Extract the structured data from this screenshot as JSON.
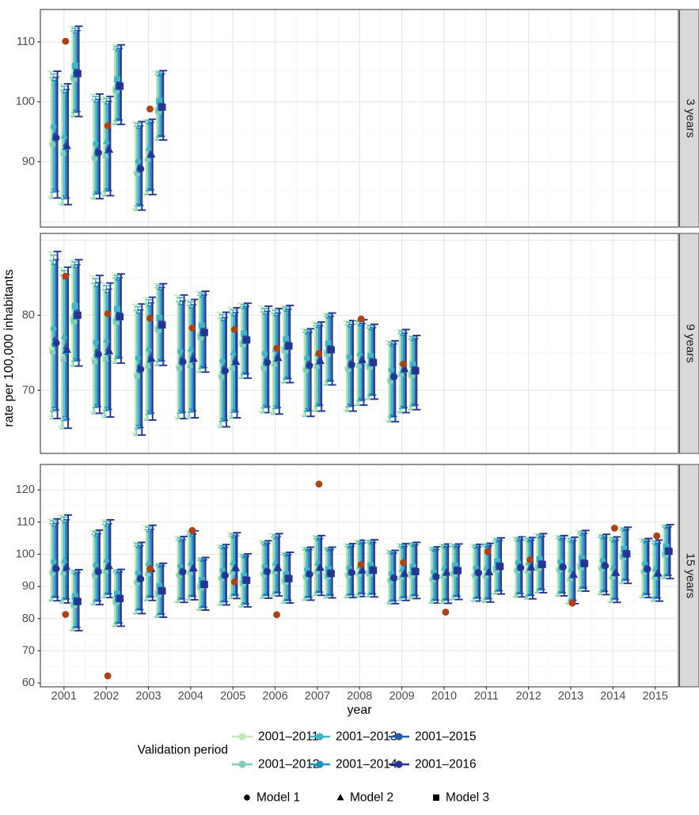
{
  "figure": {
    "xlabel": "year",
    "ylabel": "rate per 100,000 inhabitants"
  },
  "legend": {
    "validation_title": "Validation period",
    "periods": [
      {
        "label": "2001–2011",
        "color": "#c7e9b4"
      },
      {
        "label": "2001–2012",
        "color": "#7fcdbb"
      },
      {
        "label": "2001–2013",
        "color": "#41b6c4"
      },
      {
        "label": "2001–2014",
        "color": "#1d91c0"
      },
      {
        "label": "2001–2015",
        "color": "#225ea8"
      },
      {
        "label": "2001–2016",
        "color": "#253494"
      }
    ],
    "models": [
      {
        "label": "Model 1",
        "shape": "circle"
      },
      {
        "label": "Model 2",
        "shape": "triangle"
      },
      {
        "label": "Model 3",
        "shape": "square"
      }
    ]
  },
  "chart_data": {
    "type": "errorbar",
    "title": "",
    "xlabel": "year",
    "ylabel": "rate per 100,000 inhabitants",
    "x_ticks": [
      2001,
      2002,
      2003,
      2004,
      2005,
      2006,
      2007,
      2008,
      2009,
      2010,
      2011,
      2012,
      2013,
      2014,
      2015
    ],
    "observed_color": "#b04117",
    "interval_format": [
      "mid",
      "lo",
      "hi"
    ],
    "legend_position": "bottom",
    "grid": true,
    "facets": [
      {
        "label": "3 years",
        "ylim": [
          79.1,
          115.4
        ],
        "yticks": [
          90,
          100,
          110
        ],
        "years": [
          2001,
          2002,
          2003
        ],
        "observed": [
          110.1,
          96.0,
          98.8
        ],
        "models": [
          {
            "name": "Model 1",
            "shape": "circle",
            "intervals": [
              [
                94.0,
                83.9,
                105.1
              ],
              [
                91.5,
                83.8,
                101.3
              ],
              [
                88.8,
                81.9,
                96.7
              ]
            ]
          },
          {
            "name": "Model 2",
            "shape": "triangle",
            "intervals": [
              [
                92.6,
                82.8,
                103.0
              ],
              [
                92.0,
                84.3,
                100.9
              ],
              [
                91.2,
                84.5,
                97.1
              ]
            ]
          },
          {
            "name": "Model 3",
            "shape": "square",
            "intervals": [
              [
                104.7,
                97.5,
                112.6
              ],
              [
                102.6,
                96.2,
                109.5
              ],
              [
                99.1,
                93.6,
                105.2
              ]
            ]
          }
        ]
      },
      {
        "label": "9 years",
        "ylim": [
          61.6,
          90.9
        ],
        "yticks": [
          70,
          80
        ],
        "years": [
          2001,
          2002,
          2003,
          2004,
          2005,
          2006,
          2007,
          2008,
          2009
        ],
        "observed": [
          85.2,
          80.2,
          79.6,
          78.3,
          78.1,
          75.6,
          74.9,
          79.5,
          73.5
        ],
        "models": [
          {
            "name": "Model 1",
            "shape": "circle",
            "intervals": [
              [
                76.3,
                66.2,
                88.5
              ],
              [
                74.8,
                66.9,
                85.3
              ],
              [
                72.8,
                64.0,
                81.5
              ],
              [
                73.8,
                66.2,
                82.7
              ],
              [
                72.6,
                65.1,
                80.4
              ],
              [
                73.7,
                67.0,
                81.2
              ],
              [
                73.3,
                66.5,
                78.2
              ],
              [
                73.4,
                67.2,
                79.3
              ],
              [
                71.8,
                65.8,
                76.6
              ]
            ]
          },
          {
            "name": "Model 2",
            "shape": "triangle",
            "intervals": [
              [
                75.4,
                64.9,
                86.4
              ],
              [
                75.2,
                66.4,
                84.3
              ],
              [
                74.2,
                66.0,
                82.4
              ],
              [
                74.2,
                66.3,
                82.1
              ],
              [
                73.8,
                66.3,
                81.0
              ],
              [
                74.3,
                66.8,
                80.9
              ],
              [
                73.9,
                67.2,
                79.1
              ],
              [
                74.0,
                68.0,
                79.4
              ],
              [
                72.8,
                67.0,
                78.1
              ]
            ]
          },
          {
            "name": "Model 3",
            "shape": "square",
            "intervals": [
              [
                80.0,
                73.2,
                87.4
              ],
              [
                79.8,
                73.6,
                85.5
              ],
              [
                78.7,
                73.3,
                84.2
              ],
              [
                77.7,
                72.4,
                83.2
              ],
              [
                76.7,
                71.6,
                81.6
              ],
              [
                75.9,
                71.0,
                81.3
              ],
              [
                75.4,
                70.7,
                80.3
              ],
              [
                73.7,
                68.8,
                78.8
              ],
              [
                72.6,
                67.4,
                77.3
              ]
            ]
          }
        ]
      },
      {
        "label": "15 years",
        "ylim": [
          58.8,
          127.9
        ],
        "yticks": [
          60,
          70,
          80,
          90,
          100,
          110,
          120
        ],
        "years": [
          2001,
          2002,
          2003,
          2004,
          2005,
          2006,
          2007,
          2008,
          2009,
          2010,
          2011,
          2012,
          2013,
          2014,
          2015
        ],
        "observed": [
          81.3,
          62.2,
          95.5,
          107.4,
          91.4,
          81.2,
          121.8,
          96.8,
          97.4,
          82.0,
          100.8,
          98.3,
          84.8,
          108.1,
          105.7
        ],
        "models": [
          {
            "name": "Model 1",
            "shape": "circle",
            "intervals": [
              [
                95.5,
                85.5,
                111.0
              ],
              [
                94.6,
                84.3,
                107.5
              ],
              [
                92.3,
                81.5,
                103.7
              ],
              [
                94.5,
                85.0,
                105.5
              ],
              [
                93.4,
                84.2,
                103.0
              ],
              [
                94.6,
                86.3,
                104.2
              ],
              [
                93.8,
                85.7,
                102.2
              ],
              [
                94.3,
                86.5,
                103.3
              ],
              [
                92.6,
                84.6,
                101.2
              ],
              [
                93.0,
                84.8,
                102.3
              ],
              [
                94.2,
                85.4,
                103.1
              ],
              [
                95.8,
                86.7,
                105.4
              ],
              [
                96.0,
                87.0,
                105.8
              ],
              [
                96.4,
                87.4,
                106.2
              ],
              [
                95.4,
                86.5,
                104.9
              ]
            ]
          },
          {
            "name": "Model 2",
            "shape": "triangle",
            "intervals": [
              [
                95.8,
                84.8,
                112.2
              ],
              [
                96.2,
                86.5,
                110.7
              ],
              [
                95.4,
                85.6,
                109.0
              ],
              [
                95.6,
                85.8,
                107.3
              ],
              [
                95.7,
                86.2,
                106.7
              ],
              [
                95.7,
                87.0,
                106.4
              ],
              [
                95.8,
                87.2,
                105.8
              ],
              [
                94.9,
                86.8,
                104.4
              ],
              [
                93.9,
                85.6,
                103.3
              ],
              [
                94.3,
                84.7,
                103.2
              ],
              [
                94.4,
                85.1,
                103.4
              ],
              [
                95.9,
                86.1,
                105.2
              ],
              [
                93.6,
                84.6,
                105.3
              ],
              [
                94.2,
                85.0,
                105.4
              ],
              [
                94.0,
                85.4,
                104.4
              ]
            ]
          },
          {
            "name": "Model 3",
            "shape": "square",
            "intervals": [
              [
                85.3,
                76.2,
                95.2
              ],
              [
                86.2,
                77.6,
                95.3
              ],
              [
                88.6,
                80.4,
                97.2
              ],
              [
                90.6,
                82.6,
                99.0
              ],
              [
                91.9,
                83.6,
                100.1
              ],
              [
                92.4,
                84.8,
                100.6
              ],
              [
                94.0,
                86.4,
                102.2
              ],
              [
                95.0,
                86.7,
                104.5
              ],
              [
                94.6,
                86.2,
                103.7
              ],
              [
                94.9,
                85.9,
                103.2
              ],
              [
                96.2,
                87.6,
                105.1
              ],
              [
                96.8,
                88.0,
                106.4
              ],
              [
                97.1,
                88.5,
                107.4
              ],
              [
                100.1,
                90.9,
                108.4
              ],
              [
                100.9,
                92.4,
                109.2
              ]
            ]
          }
        ]
      }
    ]
  }
}
